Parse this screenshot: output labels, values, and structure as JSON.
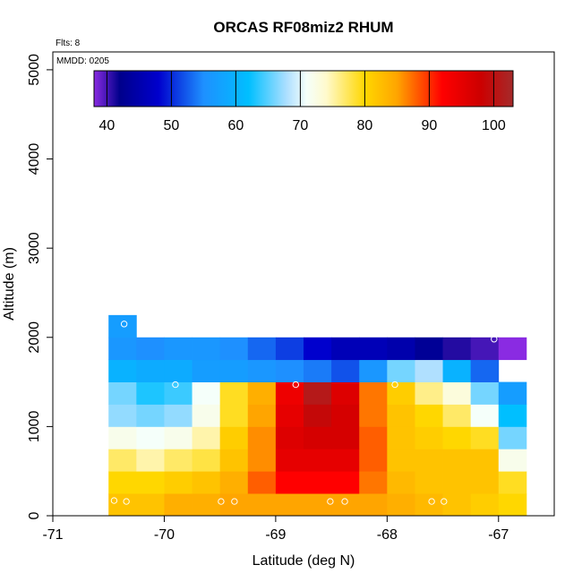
{
  "chart_data": {
    "type": "heatmap",
    "title": "ORCAS RF08miz2 RHUM",
    "flights_label": "Flts: 8",
    "date_label": "MMDD: 0205",
    "xlabel": "Latitude (deg N)",
    "ylabel": "Altitude (m)",
    "xlim": [
      -71,
      -66.5
    ],
    "ylim": [
      0,
      5200
    ],
    "x_ticks": [
      -71,
      -70,
      -69,
      -68,
      -67
    ],
    "x_tick_labels": [
      "-71",
      "-70",
      "-69",
      "-68",
      "-67"
    ],
    "y_ticks": [
      0,
      1000,
      2000,
      3000,
      4000,
      5000
    ],
    "y_tick_labels": [
      "0",
      "1000",
      "2000",
      "3000",
      "4000",
      "5000"
    ],
    "colorbar": {
      "min": 38,
      "max": 103,
      "ticks": [
        40,
        50,
        60,
        70,
        80,
        90,
        100
      ],
      "tick_labels": [
        "40",
        "50",
        "60",
        "70",
        "80",
        "90",
        "100"
      ],
      "stops": [
        {
          "v": 38,
          "c": "#8a2be2"
        },
        {
          "v": 42,
          "c": "#00008b"
        },
        {
          "v": 48,
          "c": "#0000cd"
        },
        {
          "v": 55,
          "c": "#1e90ff"
        },
        {
          "v": 62,
          "c": "#00bfff"
        },
        {
          "v": 68,
          "c": "#b0e0ff"
        },
        {
          "v": 71,
          "c": "#f5fffa"
        },
        {
          "v": 74,
          "c": "#fffacd"
        },
        {
          "v": 80,
          "c": "#ffd700"
        },
        {
          "v": 85,
          "c": "#ffa500"
        },
        {
          "v": 92,
          "c": "#ff0000"
        },
        {
          "v": 98,
          "c": "#cc0000"
        },
        {
          "v": 103,
          "c": "#a52a2a"
        }
      ]
    },
    "cell_width_deg": 0.25,
    "cell_height_m": 250,
    "x_start": -70.5,
    "rows": [
      {
        "alt": 0,
        "values": [
          82,
          82,
          84,
          84,
          85,
          85,
          85,
          85,
          85,
          85,
          84,
          83,
          82,
          81,
          80
        ]
      },
      {
        "alt": 250,
        "values": [
          80,
          80,
          81,
          82,
          84,
          88,
          92,
          92,
          92,
          87,
          83,
          82,
          82,
          82,
          79
        ]
      },
      {
        "alt": 500,
        "values": [
          77,
          75,
          77,
          78,
          82,
          86,
          95,
          95,
          95,
          88,
          82,
          82,
          82,
          82,
          72
        ]
      },
      {
        "alt": 750,
        "values": [
          72,
          71,
          72,
          75,
          81,
          86,
          96,
          97,
          97,
          88,
          82,
          81,
          80,
          79,
          66
        ]
      },
      {
        "alt": 1000,
        "values": [
          67,
          66,
          67,
          72,
          79,
          85,
          95,
          99,
          97,
          87,
          82,
          80,
          77,
          71,
          62
        ]
      },
      {
        "alt": 1250,
        "values": [
          66,
          63,
          64,
          71,
          79,
          84,
          94,
          101,
          96,
          87,
          81,
          76,
          73,
          66,
          57
        ]
      },
      {
        "alt": 1500,
        "values": [
          60,
          59,
          59,
          57,
          57,
          56,
          55,
          54,
          52,
          56,
          66,
          68,
          60,
          53,
          null
        ]
      },
      {
        "alt": 1750,
        "values": [
          56,
          55,
          56,
          56,
          55,
          53,
          51,
          48,
          46,
          46,
          45,
          43,
          41,
          40,
          37
        ]
      },
      {
        "alt": 2000,
        "values": [
          57,
          null,
          null,
          null,
          null,
          null,
          null,
          null,
          null,
          null,
          null,
          null,
          null,
          null,
          null
        ]
      }
    ],
    "flight_points": [
      {
        "lat": -70.45,
        "alt": 170
      },
      {
        "lat": -70.34,
        "alt": 160
      },
      {
        "lat": -69.49,
        "alt": 160
      },
      {
        "lat": -69.37,
        "alt": 160
      },
      {
        "lat": -68.51,
        "alt": 160
      },
      {
        "lat": -68.38,
        "alt": 160
      },
      {
        "lat": -67.6,
        "alt": 160
      },
      {
        "lat": -67.49,
        "alt": 160
      },
      {
        "lat": -69.9,
        "alt": 1470
      },
      {
        "lat": -68.82,
        "alt": 1470
      },
      {
        "lat": -67.93,
        "alt": 1470
      },
      {
        "lat": -70.36,
        "alt": 2150
      },
      {
        "lat": -67.04,
        "alt": 1980
      }
    ]
  }
}
